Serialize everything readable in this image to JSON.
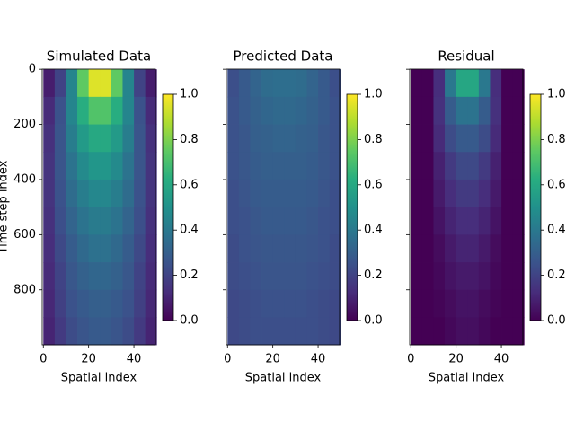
{
  "chart_data": [
    {
      "type": "heatmap",
      "title": "Simulated Data",
      "xlabel": "Spatial index",
      "ylabel": "Time step index",
      "colormap": "viridis",
      "x": [
        2.5,
        7.5,
        12.5,
        17.5,
        22.5,
        27.5,
        32.5,
        37.5,
        42.5,
        47.5
      ],
      "y": [
        50,
        150,
        250,
        350,
        450,
        550,
        650,
        750,
        850,
        950
      ],
      "z": [
        [
          0.08,
          0.2,
          0.45,
          0.75,
          0.95,
          0.95,
          0.75,
          0.45,
          0.2,
          0.08
        ],
        [
          0.12,
          0.25,
          0.45,
          0.62,
          0.72,
          0.72,
          0.62,
          0.45,
          0.25,
          0.12
        ],
        [
          0.14,
          0.26,
          0.42,
          0.54,
          0.6,
          0.6,
          0.54,
          0.42,
          0.26,
          0.14
        ],
        [
          0.15,
          0.26,
          0.38,
          0.47,
          0.52,
          0.52,
          0.47,
          0.38,
          0.26,
          0.15
        ],
        [
          0.15,
          0.25,
          0.35,
          0.42,
          0.46,
          0.46,
          0.42,
          0.35,
          0.25,
          0.15
        ],
        [
          0.14,
          0.24,
          0.32,
          0.38,
          0.41,
          0.41,
          0.38,
          0.32,
          0.24,
          0.14
        ],
        [
          0.13,
          0.22,
          0.29,
          0.34,
          0.37,
          0.37,
          0.34,
          0.29,
          0.22,
          0.13
        ],
        [
          0.12,
          0.2,
          0.27,
          0.31,
          0.33,
          0.33,
          0.31,
          0.27,
          0.2,
          0.12
        ],
        [
          0.11,
          0.19,
          0.25,
          0.28,
          0.3,
          0.3,
          0.28,
          0.25,
          0.19,
          0.11
        ],
        [
          0.1,
          0.17,
          0.23,
          0.26,
          0.28,
          0.28,
          0.26,
          0.23,
          0.17,
          0.1
        ]
      ],
      "xlim": [
        -0.5,
        49.5
      ],
      "xticks": [
        0,
        20,
        40
      ],
      "ylim": [
        999.5,
        -0.5
      ],
      "yticks": [
        0,
        200,
        400,
        600,
        800
      ],
      "clim": [
        0,
        1
      ],
      "cticks": [
        {
          "value": 0,
          "label": "0.0"
        },
        {
          "value": 0.2,
          "label": "0.2"
        },
        {
          "value": 0.4,
          "label": "0.4"
        },
        {
          "value": 0.6,
          "label": "0.6"
        },
        {
          "value": 0.8,
          "label": "0.8"
        },
        {
          "value": 1,
          "label": "1.0"
        }
      ]
    },
    {
      "type": "heatmap",
      "title": "Predicted Data",
      "xlabel": "Spatial index",
      "colormap": "viridis",
      "x": [
        2.5,
        7.5,
        12.5,
        17.5,
        22.5,
        27.5,
        32.5,
        37.5,
        42.5,
        47.5
      ],
      "y": [
        50,
        150,
        250,
        350,
        450,
        550,
        650,
        750,
        850,
        950
      ],
      "z": [
        [
          0.24,
          0.28,
          0.32,
          0.35,
          0.36,
          0.36,
          0.35,
          0.32,
          0.28,
          0.24
        ],
        [
          0.25,
          0.28,
          0.31,
          0.33,
          0.34,
          0.34,
          0.33,
          0.31,
          0.28,
          0.25
        ],
        [
          0.25,
          0.27,
          0.3,
          0.31,
          0.32,
          0.32,
          0.31,
          0.3,
          0.27,
          0.25
        ],
        [
          0.25,
          0.27,
          0.29,
          0.3,
          0.3,
          0.3,
          0.3,
          0.29,
          0.27,
          0.25
        ],
        [
          0.24,
          0.26,
          0.28,
          0.29,
          0.29,
          0.29,
          0.29,
          0.28,
          0.26,
          0.24
        ],
        [
          0.24,
          0.25,
          0.27,
          0.28,
          0.28,
          0.28,
          0.28,
          0.27,
          0.25,
          0.24
        ],
        [
          0.23,
          0.25,
          0.26,
          0.27,
          0.27,
          0.27,
          0.27,
          0.26,
          0.25,
          0.23
        ],
        [
          0.23,
          0.24,
          0.25,
          0.26,
          0.26,
          0.26,
          0.26,
          0.25,
          0.24,
          0.23
        ],
        [
          0.22,
          0.23,
          0.24,
          0.25,
          0.25,
          0.25,
          0.25,
          0.24,
          0.23,
          0.22
        ],
        [
          0.22,
          0.23,
          0.24,
          0.24,
          0.24,
          0.24,
          0.24,
          0.24,
          0.23,
          0.22
        ]
      ],
      "xlim": [
        -0.5,
        49.5
      ],
      "xticks": [
        0,
        20,
        40
      ],
      "ylim": [
        999.5,
        -0.5
      ],
      "yticks": [
        0,
        200,
        400,
        600,
        800
      ],
      "clim": [
        0,
        1
      ],
      "cticks": [
        {
          "value": 0,
          "label": "0.0"
        },
        {
          "value": 0.2,
          "label": "0.2"
        },
        {
          "value": 0.4,
          "label": "0.4"
        },
        {
          "value": 0.6,
          "label": "0.6"
        },
        {
          "value": 0.8,
          "label": "0.8"
        },
        {
          "value": 1,
          "label": "1.0"
        }
      ]
    },
    {
      "type": "heatmap",
      "title": "Residual",
      "xlabel": "Spatial index",
      "colormap": "viridis",
      "x": [
        2.5,
        7.5,
        12.5,
        17.5,
        22.5,
        27.5,
        32.5,
        37.5,
        42.5,
        47.5
      ],
      "y": [
        50,
        150,
        250,
        350,
        450,
        550,
        650,
        750,
        850,
        950
      ],
      "z": [
        [
          0,
          0,
          0.13,
          0.4,
          0.59,
          0.59,
          0.4,
          0.13,
          0,
          0
        ],
        [
          0,
          0,
          0.14,
          0.29,
          0.38,
          0.38,
          0.29,
          0.14,
          0,
          0
        ],
        [
          0,
          0,
          0.12,
          0.23,
          0.28,
          0.28,
          0.23,
          0.12,
          0,
          0
        ],
        [
          0,
          0,
          0.09,
          0.17,
          0.22,
          0.22,
          0.17,
          0.09,
          0,
          0
        ],
        [
          0,
          0,
          0.07,
          0.13,
          0.17,
          0.17,
          0.13,
          0.07,
          0,
          0
        ],
        [
          0,
          0,
          0.05,
          0.1,
          0.13,
          0.13,
          0.1,
          0.05,
          0,
          0
        ],
        [
          0,
          0,
          0.03,
          0.07,
          0.1,
          0.1,
          0.07,
          0.03,
          0,
          0
        ],
        [
          0,
          0,
          0.02,
          0.05,
          0.07,
          0.07,
          0.05,
          0.02,
          0,
          0
        ],
        [
          0,
          0,
          0.01,
          0.03,
          0.05,
          0.05,
          0.03,
          0.01,
          0,
          0
        ],
        [
          0,
          0,
          0,
          0.02,
          0.04,
          0.04,
          0.02,
          0,
          0,
          0
        ]
      ],
      "xlim": [
        -0.5,
        49.5
      ],
      "xticks": [
        0,
        20,
        40
      ],
      "ylim": [
        999.5,
        -0.5
      ],
      "yticks": [
        0,
        200,
        400,
        600,
        800
      ],
      "clim": [
        0,
        1
      ],
      "cticks": [
        {
          "value": 0,
          "label": "0.0"
        },
        {
          "value": 0.2,
          "label": "0.2"
        },
        {
          "value": 0.4,
          "label": "0.4"
        },
        {
          "value": 0.6,
          "label": "0.6"
        },
        {
          "value": 0.8,
          "label": "0.8"
        },
        {
          "value": 1,
          "label": "1.0"
        }
      ]
    }
  ]
}
